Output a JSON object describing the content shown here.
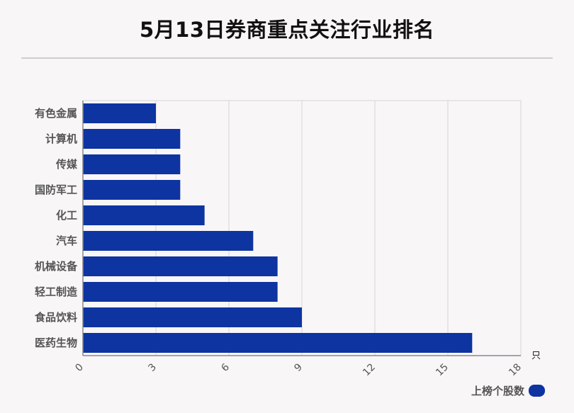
{
  "chart_data": {
    "type": "bar",
    "orientation": "horizontal",
    "title": "5月13日券商重点关注行业排名",
    "categories": [
      "有色金属",
      "计算机",
      "传媒",
      "国防军工",
      "化工",
      "汽车",
      "机械设备",
      "轻工制造",
      "食品饮料",
      "医药生物"
    ],
    "series": [
      {
        "name": "上榜个股数",
        "values": [
          3,
          4,
          4,
          4,
          5,
          7,
          8,
          8,
          9,
          16
        ]
      }
    ],
    "xlim": [
      0,
      18
    ],
    "xticks": [
      0,
      3,
      6,
      9,
      12,
      15,
      18
    ],
    "xlabel": "只",
    "ylabel": "",
    "grid": true,
    "legend_position": "bottom-right",
    "colors": {
      "bar": "#0d34a0",
      "grid": "#d6d3d6",
      "axis": "#888888",
      "category_label": "#555555",
      "tick_label": "#555555"
    }
  }
}
